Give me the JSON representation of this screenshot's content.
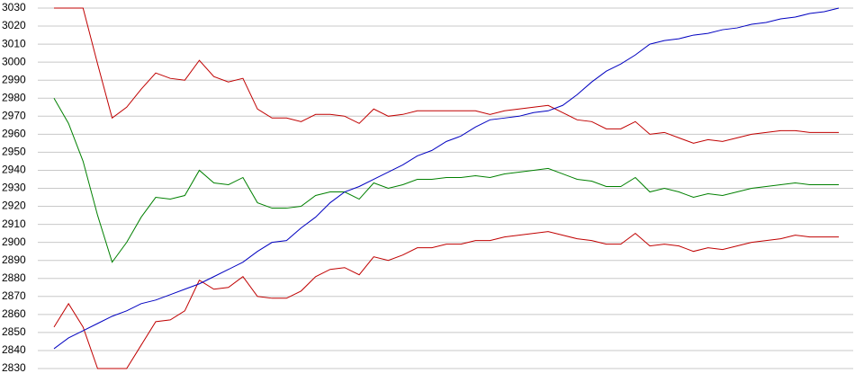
{
  "chart_data": {
    "type": "line",
    "ylim": [
      2830,
      3030
    ],
    "yticks": [
      2830,
      2840,
      2850,
      2860,
      2870,
      2880,
      2890,
      2900,
      2910,
      2920,
      2930,
      2940,
      2950,
      2960,
      2970,
      2980,
      2990,
      3000,
      3010,
      3020,
      3030
    ],
    "grid": true,
    "series": [
      {
        "color": "#c00000",
        "values": [
          3030,
          3030,
          3030,
          2999,
          2969,
          2975,
          2985,
          2994,
          2991,
          2990,
          3001,
          2992,
          2989,
          2991,
          2974,
          2969,
          2969,
          2967,
          2971,
          2971,
          2970,
          2966,
          2974,
          2970,
          2971,
          2973,
          2973,
          2973,
          2973,
          2973,
          2971,
          2973,
          2974,
          2975,
          2976,
          2972,
          2968,
          2967,
          2963,
          2963,
          2967,
          2960,
          2961,
          2958,
          2955,
          2957,
          2956,
          2958,
          2960,
          2961,
          2962,
          2962,
          2961,
          2961,
          2961
        ]
      },
      {
        "color": "#008000",
        "values": [
          2980,
          2966,
          2945,
          2915,
          2889,
          2900,
          2914,
          2925,
          2924,
          2926,
          2940,
          2933,
          2932,
          2936,
          2922,
          2919,
          2919,
          2920,
          2926,
          2928,
          2928,
          2924,
          2933,
          2930,
          2932,
          2935,
          2935,
          2936,
          2936,
          2937,
          2936,
          2938,
          2939,
          2940,
          2941,
          2938,
          2935,
          2934,
          2931,
          2931,
          2936,
          2928,
          2930,
          2928,
          2925,
          2927,
          2926,
          2928,
          2930,
          2931,
          2932,
          2933,
          2932,
          2932,
          2932
        ]
      },
      {
        "color": "#c00000",
        "values": [
          2853,
          2866,
          2853,
          2830,
          2830,
          2830,
          2843,
          2856,
          2857,
          2862,
          2879,
          2874,
          2875,
          2881,
          2870,
          2869,
          2869,
          2873,
          2881,
          2885,
          2886,
          2882,
          2892,
          2890,
          2893,
          2897,
          2897,
          2899,
          2899,
          2901,
          2901,
          2903,
          2904,
          2905,
          2906,
          2904,
          2902,
          2901,
          2899,
          2899,
          2905,
          2898,
          2899,
          2898,
          2895,
          2897,
          2896,
          2898,
          2900,
          2901,
          2902,
          2904,
          2903,
          2903,
          2903
        ]
      },
      {
        "color": "#0000c0",
        "values": [
          2841,
          2847,
          2851,
          2855,
          2859,
          2862,
          2866,
          2868,
          2871,
          2874,
          2877,
          2881,
          2885,
          2889,
          2895,
          2900,
          2901,
          2908,
          2914,
          2922,
          2928,
          2931,
          2935,
          2939,
          2943,
          2948,
          2951,
          2956,
          2959,
          2964,
          2968,
          2969,
          2970,
          2972,
          2973,
          2976,
          2982,
          2989,
          2995,
          2999,
          3004,
          3010,
          3012,
          3013,
          3015,
          3016,
          3018,
          3019,
          3021,
          3022,
          3024,
          3025,
          3027,
          3028,
          3030
        ]
      }
    ]
  }
}
